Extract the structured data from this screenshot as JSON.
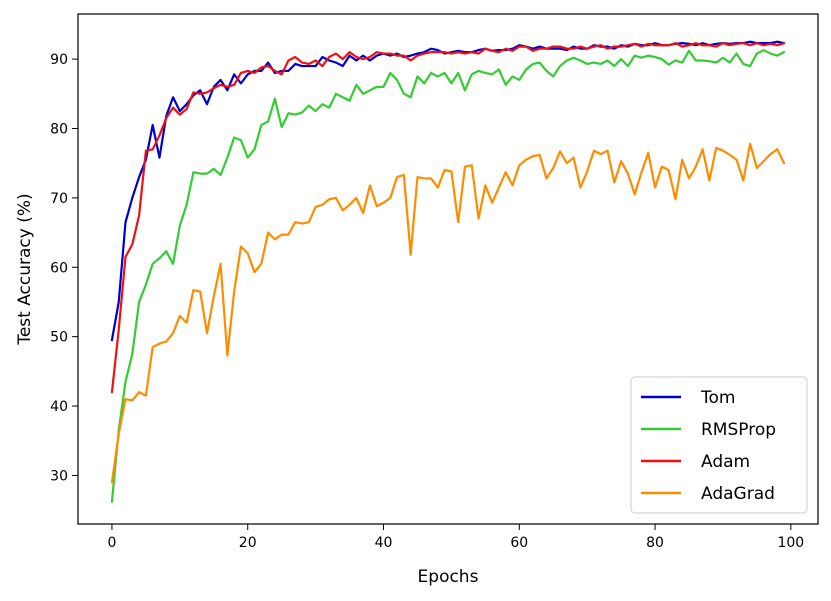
{
  "chart_data": {
    "type": "line",
    "title": "",
    "xlabel": "Epochs",
    "ylabel": "Test Accuracy (%)",
    "xlim": [
      -5,
      104
    ],
    "ylim": [
      23,
      96.5
    ],
    "xticks": [
      0,
      20,
      40,
      60,
      80,
      100
    ],
    "yticks": [
      30,
      40,
      50,
      60,
      70,
      80,
      90
    ],
    "grid": false,
    "legend_position": "bottom-right",
    "x": [
      0,
      1,
      2,
      3,
      4,
      5,
      6,
      7,
      8,
      9,
      10,
      11,
      12,
      13,
      14,
      15,
      16,
      17,
      18,
      19,
      20,
      21,
      22,
      23,
      24,
      25,
      26,
      27,
      28,
      29,
      30,
      31,
      32,
      33,
      34,
      35,
      36,
      37,
      38,
      39,
      40,
      41,
      42,
      43,
      44,
      45,
      46,
      47,
      48,
      49,
      50,
      51,
      52,
      53,
      54,
      55,
      56,
      57,
      58,
      59,
      60,
      61,
      62,
      63,
      64,
      65,
      66,
      67,
      68,
      69,
      70,
      71,
      72,
      73,
      74,
      75,
      76,
      77,
      78,
      79,
      80,
      81,
      82,
      83,
      84,
      85,
      86,
      87,
      88,
      89,
      90,
      91,
      92,
      93,
      94,
      95,
      96,
      97,
      98,
      99
    ],
    "series": [
      {
        "name": "Tom",
        "color": "#0000cc",
        "values": [
          49.5,
          55.0,
          66.5,
          70.0,
          73.0,
          75.5,
          80.5,
          75.8,
          81.8,
          84.5,
          82.5,
          83.5,
          84.8,
          85.5,
          83.5,
          86.0,
          87.0,
          85.5,
          87.8,
          86.5,
          87.8,
          88.3,
          88.3,
          89.5,
          88.0,
          88.3,
          88.3,
          89.3,
          89.0,
          89.0,
          89.0,
          90.3,
          89.8,
          89.5,
          89.0,
          90.5,
          89.8,
          90.5,
          89.8,
          90.5,
          90.8,
          90.5,
          90.8,
          90.3,
          90.5,
          90.8,
          91.0,
          91.5,
          91.3,
          90.8,
          91.0,
          91.2,
          91.0,
          91.0,
          91.3,
          91.5,
          91.2,
          91.3,
          91.3,
          91.5,
          92.0,
          91.8,
          91.5,
          91.8,
          91.5,
          91.5,
          91.5,
          91.3,
          91.8,
          91.5,
          91.5,
          92.0,
          91.8,
          91.8,
          91.5,
          92.0,
          91.8,
          92.2,
          92.0,
          92.0,
          92.3,
          92.0,
          92.0,
          92.2,
          92.3,
          92.2,
          92.0,
          92.3,
          92.0,
          92.2,
          92.3,
          92.2,
          92.3,
          92.3,
          92.5,
          92.3,
          92.3,
          92.3,
          92.5,
          92.3
        ]
      },
      {
        "name": "RMSProp",
        "color": "#33cc33",
        "values": [
          26.2,
          36.5,
          43.5,
          47.5,
          55.0,
          57.5,
          60.5,
          61.3,
          62.3,
          60.5,
          66.0,
          69.0,
          73.7,
          73.5,
          73.5,
          74.2,
          73.3,
          75.8,
          78.7,
          78.3,
          75.8,
          77.0,
          80.5,
          81.0,
          84.3,
          80.2,
          82.2,
          82.0,
          82.3,
          83.3,
          82.5,
          83.5,
          83.0,
          85.0,
          84.5,
          84.0,
          86.3,
          85.0,
          85.5,
          86.0,
          86.0,
          88.0,
          87.0,
          85.0,
          84.5,
          87.5,
          86.5,
          88.0,
          87.5,
          88.0,
          86.5,
          88.0,
          85.5,
          87.8,
          88.3,
          88.0,
          87.8,
          88.5,
          86.3,
          87.5,
          87.0,
          88.5,
          89.3,
          89.5,
          88.3,
          87.5,
          89.0,
          89.8,
          90.2,
          89.8,
          89.3,
          89.5,
          89.3,
          89.8,
          89.0,
          90.0,
          89.0,
          90.5,
          90.2,
          90.5,
          90.3,
          90.0,
          89.2,
          89.8,
          89.5,
          91.2,
          89.8,
          89.8,
          89.7,
          89.5,
          90.2,
          89.5,
          90.8,
          89.3,
          89.0,
          90.8,
          91.3,
          90.8,
          90.5,
          91.0
        ]
      },
      {
        "name": "Adam",
        "color": "#ee1111",
        "values": [
          42.0,
          51.0,
          61.5,
          63.3,
          67.5,
          76.8,
          77.0,
          79.0,
          81.5,
          83.0,
          82.0,
          82.8,
          85.2,
          85.0,
          85.2,
          85.8,
          86.3,
          86.0,
          86.3,
          88.0,
          88.3,
          88.0,
          88.8,
          89.0,
          88.3,
          87.8,
          89.8,
          90.3,
          89.5,
          89.3,
          89.8,
          89.0,
          90.3,
          90.8,
          90.0,
          91.0,
          90.3,
          90.0,
          90.3,
          91.0,
          90.8,
          90.8,
          90.5,
          90.5,
          89.8,
          90.5,
          90.8,
          91.0,
          91.0,
          91.0,
          90.8,
          91.0,
          90.8,
          91.0,
          90.8,
          91.5,
          91.2,
          91.0,
          91.5,
          91.2,
          91.8,
          91.8,
          91.2,
          91.5,
          91.5,
          91.8,
          91.8,
          91.5,
          91.5,
          91.8,
          91.5,
          91.8,
          92.0,
          91.5,
          91.8,
          91.8,
          92.0,
          92.2,
          91.8,
          92.2,
          92.0,
          92.0,
          92.0,
          92.3,
          91.8,
          92.0,
          92.3,
          92.0,
          92.0,
          91.8,
          92.3,
          92.0,
          92.2,
          92.3,
          92.0,
          92.3,
          92.0,
          92.2,
          92.0,
          92.3
        ]
      },
      {
        "name": "AdaGrad",
        "color": "#ff8c00",
        "values": [
          29.0,
          36.0,
          41.0,
          40.8,
          42.0,
          41.5,
          48.5,
          49.0,
          49.3,
          50.5,
          53.0,
          52.0,
          56.7,
          56.5,
          50.5,
          55.8,
          60.5,
          47.3,
          56.5,
          63.0,
          62.0,
          59.3,
          60.5,
          65.0,
          64.0,
          64.7,
          64.7,
          66.5,
          66.3,
          66.5,
          68.7,
          69.0,
          69.8,
          70.0,
          68.2,
          69.0,
          70.0,
          67.8,
          71.8,
          68.8,
          69.3,
          70.0,
          73.0,
          73.3,
          61.8,
          73.0,
          72.8,
          72.8,
          71.5,
          74.0,
          73.8,
          66.5,
          74.5,
          74.7,
          67.0,
          71.8,
          69.3,
          71.5,
          73.7,
          71.8,
          74.7,
          75.5,
          76.0,
          76.2,
          72.8,
          74.3,
          76.7,
          75.0,
          75.8,
          71.5,
          73.8,
          76.8,
          76.3,
          76.8,
          72.2,
          75.3,
          73.5,
          70.5,
          73.7,
          76.5,
          71.5,
          74.5,
          74.0,
          69.8,
          75.5,
          72.8,
          74.5,
          77.0,
          72.5,
          77.2,
          76.8,
          76.2,
          75.5,
          72.5,
          77.8,
          74.3,
          75.3,
          76.3,
          77.0,
          75.0
        ]
      }
    ]
  }
}
